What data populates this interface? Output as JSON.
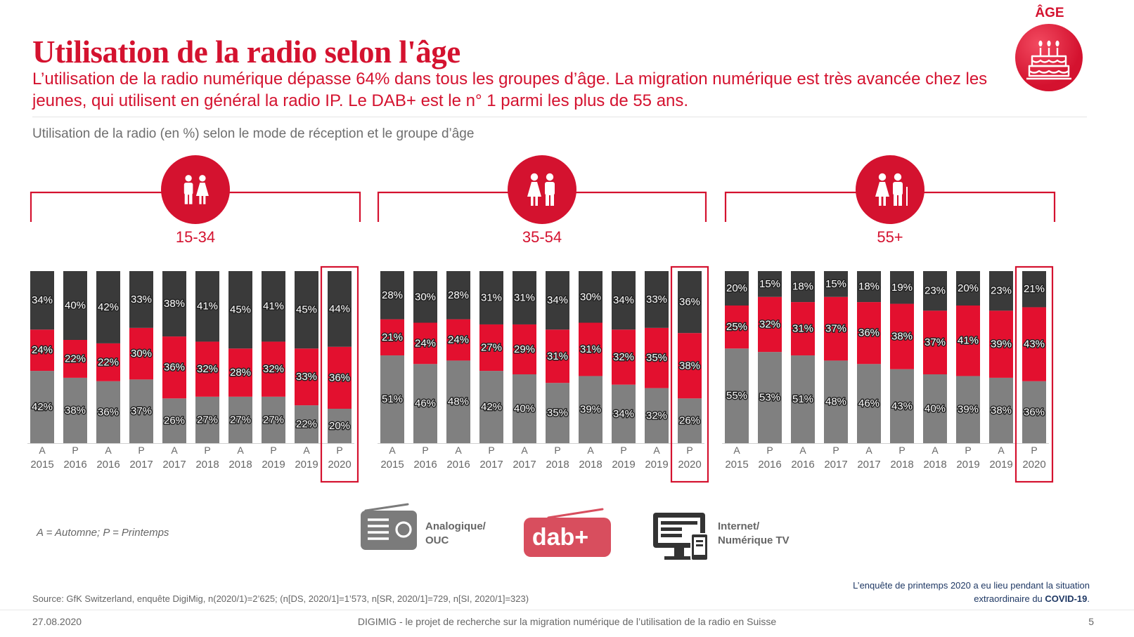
{
  "header": {
    "title": "Utilisation de la radio selon l'âge",
    "subtitle": "L’utilisation de la radio numérique dépasse 64% dans tous les groupes d’âge. La migration numérique est très avancée chez les jeunes, qui utilisent en général la radio IP. Le DAB+ est le n° 1 parmi les plus de 55 ans.",
    "age_label": "ÂGE",
    "chart_title": "Utilisation de la radio (en %) selon le mode de réception et le groupe d’âge"
  },
  "colors": {
    "accent": "#d4122f",
    "analog": "#808080",
    "dab": "#e3102f",
    "internet": "#3a3a3a",
    "text_grey": "#666666",
    "navy": "#1f3864"
  },
  "icons": {
    "age": "birthday-cake-icon",
    "group_15_34": "children-icon",
    "group_35_54": "adult-couple-icon",
    "group_55_plus": "senior-couple-icon",
    "analog": "radio-icon",
    "internet": "computer-screen-icon"
  },
  "chart_data": [
    {
      "type": "bar",
      "stacked": true,
      "title": "15-34",
      "categories": [
        [
          "A",
          "2015"
        ],
        [
          "P",
          "2016"
        ],
        [
          "A",
          "2016"
        ],
        [
          "P",
          "2017"
        ],
        [
          "A",
          "2017"
        ],
        [
          "P",
          "2018"
        ],
        [
          "A",
          "2018"
        ],
        [
          "P",
          "2019"
        ],
        [
          "A",
          "2019"
        ],
        [
          "P",
          "2020"
        ]
      ],
      "highlight_index": 9,
      "series": [
        {
          "name": "Analogique/ OUC",
          "values": [
            42,
            38,
            36,
            37,
            26,
            27,
            27,
            27,
            22,
            20
          ]
        },
        {
          "name": "dab+",
          "values": [
            24,
            22,
            22,
            30,
            36,
            32,
            28,
            32,
            33,
            36
          ]
        },
        {
          "name": "Internet/ Numérique TV",
          "values": [
            34,
            40,
            42,
            33,
            38,
            41,
            45,
            41,
            45,
            44
          ]
        }
      ]
    },
    {
      "type": "bar",
      "stacked": true,
      "title": "35-54",
      "categories": [
        [
          "A",
          "2015"
        ],
        [
          "P",
          "2016"
        ],
        [
          "A",
          "2016"
        ],
        [
          "P",
          "2017"
        ],
        [
          "A",
          "2017"
        ],
        [
          "P",
          "2018"
        ],
        [
          "A",
          "2018"
        ],
        [
          "P",
          "2019"
        ],
        [
          "A",
          "2019"
        ],
        [
          "P",
          "2020"
        ]
      ],
      "highlight_index": 9,
      "series": [
        {
          "name": "Analogique/ OUC",
          "values": [
            51,
            46,
            48,
            42,
            40,
            35,
            39,
            34,
            32,
            26
          ]
        },
        {
          "name": "dab+",
          "values": [
            21,
            24,
            24,
            27,
            29,
            31,
            31,
            32,
            35,
            38
          ]
        },
        {
          "name": "Internet/ Numérique TV",
          "values": [
            28,
            30,
            28,
            31,
            31,
            34,
            30,
            34,
            33,
            36
          ]
        }
      ]
    },
    {
      "type": "bar",
      "stacked": true,
      "title": "55+",
      "categories": [
        [
          "A",
          "2015"
        ],
        [
          "P",
          "2016"
        ],
        [
          "A",
          "2016"
        ],
        [
          "P",
          "2017"
        ],
        [
          "A",
          "2017"
        ],
        [
          "P",
          "2018"
        ],
        [
          "A",
          "2018"
        ],
        [
          "P",
          "2019"
        ],
        [
          "A",
          "2019"
        ],
        [
          "P",
          "2020"
        ]
      ],
      "highlight_index": 9,
      "series": [
        {
          "name": "Analogique/ OUC",
          "values": [
            55,
            53,
            51,
            48,
            46,
            43,
            40,
            39,
            38,
            36
          ]
        },
        {
          "name": "dab+",
          "values": [
            25,
            32,
            31,
            37,
            36,
            38,
            37,
            41,
            39,
            43
          ]
        },
        {
          "name": "Internet/ Numérique TV",
          "values": [
            20,
            15,
            18,
            15,
            18,
            19,
            23,
            20,
            23,
            21
          ]
        }
      ]
    }
  ],
  "legend": {
    "note": "A = Automne; P = Printemps",
    "analog_label": "Analogique/ OUC",
    "dab_label": "dab+",
    "internet_label": "Internet/ Numérique TV"
  },
  "notes": {
    "covid_prefix": "L’enquête de printemps 2020 a eu lieu pendant la situation extraordinaire du ",
    "covid_bold": "COVID-19",
    "covid_suffix": ".",
    "source": "Source: GfK Switzerland, enquête DigiMig, n(2020/1)=2’625; (n[DS, 2020/1]=1’573, n[SR, 2020/1]=729, n[SI, 2020/1]=323)"
  },
  "footer": {
    "date": "27.08.2020",
    "text": "DIGIMIG - le projet de recherche sur la migration numérique de l’utilisation de la radio en Suisse",
    "page": "5"
  }
}
